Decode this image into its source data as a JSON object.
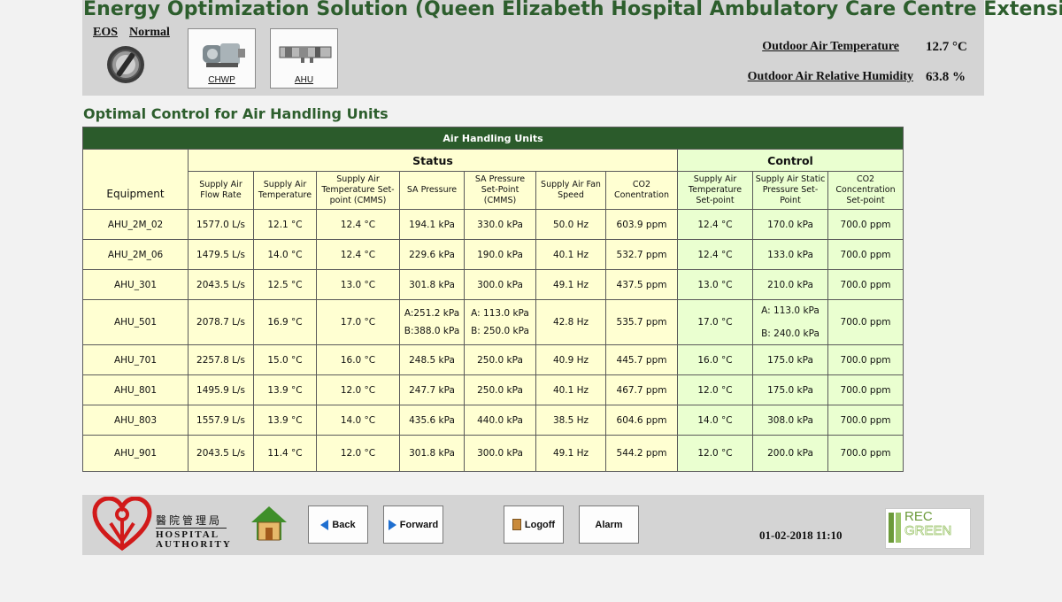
{
  "header": {
    "title": "Energy Optimization Solution (Queen Elizabeth Hospital Ambulatory Care Centre Extension)",
    "eos_label": "EOS",
    "mode_label": "Normal",
    "nav_tiles": [
      {
        "label": "CHWP",
        "icon": "pump-icon"
      },
      {
        "label": "AHU",
        "icon": "ahu-icon"
      }
    ],
    "outdoor_temp_label": "Outdoor Air Temperature",
    "outdoor_temp_value": "12.7 °C",
    "outdoor_rh_label": "Outdoor Air Relative Humidity",
    "outdoor_rh_value": "63.8 %"
  },
  "section_title": "Optimal Control for Air Handling Units",
  "table": {
    "title": "Air Handling Units",
    "equipment_header": "Equipment",
    "status_header": "Status",
    "control_header": "Control",
    "status_columns": [
      "Supply Air Flow Rate",
      "Supply Air Temperature",
      "Supply Air Temperature Set-point (CMMS)",
      "SA Pressure",
      "SA Pressure Set-Point   (CMMS)",
      "Supply Air Fan Speed",
      "CO2 Conentration"
    ],
    "control_columns": [
      "Supply Air Temperature Set-point",
      "Supply Air Static Pressure Set-Point",
      "CO2 Concentration Set-point"
    ],
    "rows": [
      {
        "equipment": "AHU_2M_02",
        "flow": "1577.0 L/s",
        "temp": "12.1 °C",
        "temp_sp_cmms": "12.4 °C",
        "sa_pressure": "194.1 kPa",
        "sa_pressure_sp": "330.0 kPa",
        "fan_speed": "50.0 Hz",
        "co2": "603.9 ppm",
        "ctrl_temp_sp": "12.4 °C",
        "ctrl_static_sp": "170.0 kPa",
        "ctrl_co2_sp": "700.0 ppm"
      },
      {
        "equipment": "AHU_2M_06",
        "flow": "1479.5 L/s",
        "temp": "14.0 °C",
        "temp_sp_cmms": "12.4 °C",
        "sa_pressure": "229.6 kPa",
        "sa_pressure_sp": "190.0 kPa",
        "fan_speed": "40.1 Hz",
        "co2": "532.7 ppm",
        "ctrl_temp_sp": "12.4 °C",
        "ctrl_static_sp": "133.0 kPa",
        "ctrl_co2_sp": "700.0 ppm"
      },
      {
        "equipment": "AHU_301",
        "flow": "2043.5 L/s",
        "temp": "12.5 °C",
        "temp_sp_cmms": "13.0 °C",
        "sa_pressure": "301.8 kPa",
        "sa_pressure_sp": "300.0 kPa",
        "fan_speed": "49.1 Hz",
        "co2": "437.5 ppm",
        "ctrl_temp_sp": "13.0 °C",
        "ctrl_static_sp": "210.0 kPa",
        "ctrl_co2_sp": "700.0 ppm"
      },
      {
        "equipment": "AHU_501",
        "flow": "2078.7 L/s",
        "temp": "16.9 °C",
        "temp_sp_cmms": "17.0 °C",
        "sa_pressure_a": "A:251.2 kPa",
        "sa_pressure_b": "B:388.0 kPa",
        "sa_pressure_sp_a": "A:  113.0 kPa",
        "sa_pressure_sp_b": "B:  250.0 kPa",
        "fan_speed": "42.8 Hz",
        "co2": "535.7 ppm",
        "ctrl_temp_sp": "17.0 °C",
        "ctrl_static_sp_a": "A: 113.0 kPa",
        "ctrl_static_sp_b": "B: 240.0 kPa",
        "ctrl_co2_sp": "700.0 ppm"
      },
      {
        "equipment": "AHU_701",
        "flow": "2257.8 L/s",
        "temp": "15.0 °C",
        "temp_sp_cmms": "16.0 °C",
        "sa_pressure": "248.5 kPa",
        "sa_pressure_sp": "250.0 kPa",
        "fan_speed": "40.9 Hz",
        "co2": "445.7 ppm",
        "ctrl_temp_sp": "16.0 °C",
        "ctrl_static_sp": "175.0 kPa",
        "ctrl_co2_sp": "700.0 ppm"
      },
      {
        "equipment": "AHU_801",
        "flow": "1495.9 L/s",
        "temp": "13.9 °C",
        "temp_sp_cmms": "12.0 °C",
        "sa_pressure": "247.7 kPa",
        "sa_pressure_sp": "250.0 kPa",
        "fan_speed": "40.1 Hz",
        "co2": "467.7 ppm",
        "ctrl_temp_sp": "12.0 °C",
        "ctrl_static_sp": "175.0 kPa",
        "ctrl_co2_sp": "700.0 ppm"
      },
      {
        "equipment": "AHU_803",
        "flow": "1557.9 L/s",
        "temp": "13.9 °C",
        "temp_sp_cmms": "14.0 °C",
        "sa_pressure": "435.6 kPa",
        "sa_pressure_sp": "440.0 kPa",
        "fan_speed": "38.5 Hz",
        "co2": "604.6 ppm",
        "ctrl_temp_sp": "14.0 °C",
        "ctrl_static_sp": "308.0 kPa",
        "ctrl_co2_sp": "700.0 ppm"
      },
      {
        "equipment": "AHU_901",
        "flow": "2043.5 L/s",
        "temp": "11.4 °C",
        "temp_sp_cmms": "12.0 °C",
        "sa_pressure": "301.8 kPa",
        "sa_pressure_sp": "300.0 kPa",
        "fan_speed": "49.1 Hz",
        "co2": "544.2 ppm",
        "ctrl_temp_sp": "12.0 °C",
        "ctrl_static_sp": "200.0 kPa",
        "ctrl_co2_sp": "700.0 ppm"
      }
    ]
  },
  "footer": {
    "logo_cn": "醫院管理局",
    "logo_en_1": "HOSPITAL",
    "logo_en_2": "AUTHORITY",
    "home_icon": "home-icon",
    "back_label": "Back",
    "forward_label": "Forward",
    "logoff_label": "Logoff",
    "alarm_label": "Alarm",
    "datetime": "01-02-2018 11:10",
    "rec_logo_1": "REC",
    "rec_logo_2": "GREEN"
  },
  "colors": {
    "title_green": "#2d5e2d",
    "table_header_green": "#2b5b2b",
    "status_bg": "#ffffd2",
    "control_bg": "#eaffd0",
    "panel_gray": "#d4d4d4",
    "ha_red": "#d11a1a"
  }
}
